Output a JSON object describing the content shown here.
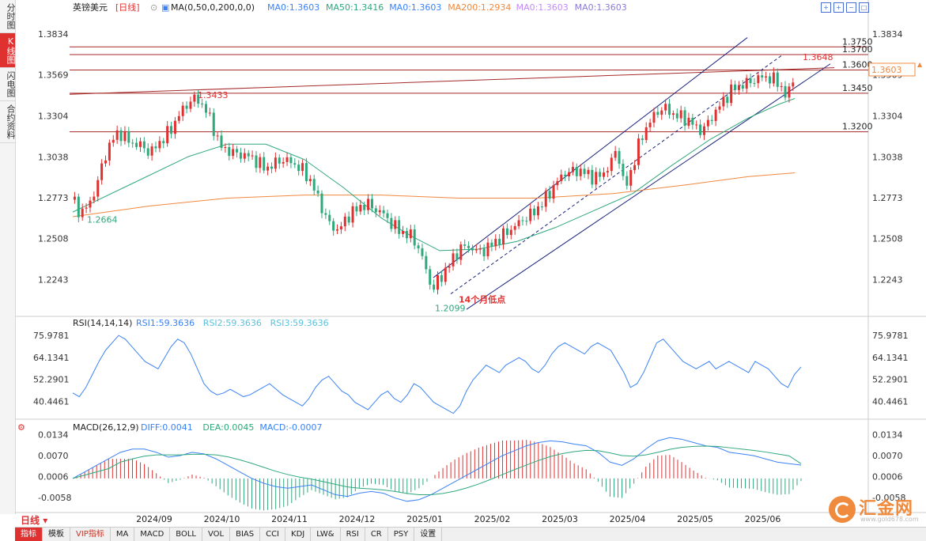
{
  "side_tabs": [
    {
      "label": "分时图",
      "active": false
    },
    {
      "label": "K线图",
      "active": true
    },
    {
      "label": "闪电图",
      "active": false
    },
    {
      "label": "合约资料",
      "active": false
    }
  ],
  "header": {
    "symbol": "英镑美元",
    "period_tag": "[日线]",
    "ma_label": "MA(0,50,0,200,0,0)",
    "ma_values": [
      {
        "text": "MA0:1.3603",
        "color": "#3b82f6"
      },
      {
        "text": "MA50:1.3416",
        "color": "#2fa87c"
      },
      {
        "text": "MA0:1.3603",
        "color": "#3b82f6"
      },
      {
        "text": "MA200:1.2934",
        "color": "#f0883e"
      },
      {
        "text": "MA0:1.3603",
        "color": "#c58af9"
      },
      {
        "text": "MA0:1.3603",
        "color": "#8b7bd8"
      }
    ]
  },
  "rsi_header": {
    "label": "RSI(14,14,14)",
    "values": [
      {
        "text": "RSI1:59.3636",
        "color": "#3b82f6"
      },
      {
        "text": "RSI2:59.3636",
        "color": "#5bc0de"
      },
      {
        "text": "RSI3:59.3636",
        "color": "#5bc0de"
      }
    ]
  },
  "macd_header": {
    "label": "MACD(26,12,9)",
    "values": [
      {
        "text": "DIFF:0.0041",
        "color": "#3b82f6"
      },
      {
        "text": "DEA:0.0045",
        "color": "#2fa87c"
      },
      {
        "text": "MACD:-0.0007",
        "color": "#3b82f6"
      }
    ]
  },
  "current_price": "1.3603",
  "period_button": "日线",
  "toolbar": [
    "指标",
    "模板",
    "VIP指标",
    "MA",
    "MACD",
    "BOLL",
    "VOL",
    "BIAS",
    "CCI",
    "KDJ",
    "LW&",
    "RSI",
    "CR",
    "PSY",
    "设置"
  ],
  "logo": {
    "text": "汇金网",
    "sub": "www.gold678.com"
  },
  "colors": {
    "up": "#e03131",
    "down": "#2fa87c",
    "ma50": "#2fa87c",
    "ma200": "#f0883e",
    "channel": "#1a237e",
    "hline": "#a52a2a"
  },
  "chart_data": [
    {
      "type": "candlestick",
      "y_ticks": [
        "1.3834",
        "1.3569",
        "1.3304",
        "1.3038",
        "1.2773",
        "1.2508",
        "1.2243"
      ],
      "ylim": [
        1.203,
        1.39
      ],
      "x_ticks": [
        "2024/09",
        "2024/10",
        "2024/11",
        "2024/12",
        "2025/01",
        "2025/02",
        "2025/03",
        "2025/04",
        "2025/05",
        "2025/06"
      ],
      "close_path": [
        [
          0,
          1.276
        ],
        [
          4,
          1.267
        ],
        [
          8,
          1.272
        ],
        [
          12,
          1.283
        ],
        [
          16,
          1.302
        ],
        [
          20,
          1.314
        ],
        [
          24,
          1.32
        ],
        [
          28,
          1.315
        ],
        [
          32,
          1.312
        ],
        [
          36,
          1.311
        ],
        [
          40,
          1.306
        ],
        [
          44,
          1.312
        ],
        [
          48,
          1.317
        ],
        [
          52,
          1.324
        ],
        [
          56,
          1.333
        ],
        [
          60,
          1.339
        ],
        [
          64,
          1.342
        ],
        [
          68,
          1.336
        ],
        [
          72,
          1.326
        ],
        [
          76,
          1.311
        ],
        [
          80,
          1.308
        ],
        [
          84,
          1.306
        ],
        [
          88,
          1.305
        ],
        [
          92,
          1.304
        ],
        [
          96,
          1.3
        ],
        [
          100,
          1.296
        ],
        [
          104,
          1.299
        ],
        [
          108,
          1.302
        ],
        [
          112,
          1.301
        ],
        [
          116,
          1.298
        ],
        [
          120,
          1.294
        ],
        [
          124,
          1.286
        ],
        [
          128,
          1.274
        ],
        [
          132,
          1.262
        ],
        [
          136,
          1.256
        ],
        [
          140,
          1.26
        ],
        [
          144,
          1.268
        ],
        [
          148,
          1.27
        ],
        [
          152,
          1.274
        ],
        [
          156,
          1.27
        ],
        [
          160,
          1.268
        ],
        [
          164,
          1.262
        ],
        [
          168,
          1.257
        ],
        [
          172,
          1.254
        ],
        [
          176,
          1.252
        ],
        [
          180,
          1.242
        ],
        [
          184,
          1.227
        ],
        [
          186,
          1.217
        ],
        [
          190,
          1.225
        ],
        [
          194,
          1.232
        ],
        [
          198,
          1.24
        ],
        [
          202,
          1.246
        ],
        [
          206,
          1.245
        ],
        [
          210,
          1.242
        ],
        [
          214,
          1.244
        ],
        [
          218,
          1.248
        ],
        [
          222,
          1.252
        ],
        [
          226,
          1.256
        ],
        [
          230,
          1.26
        ],
        [
          234,
          1.264
        ],
        [
          238,
          1.267
        ],
        [
          242,
          1.272
        ],
        [
          246,
          1.279
        ],
        [
          250,
          1.286
        ],
        [
          254,
          1.293
        ],
        [
          258,
          1.294
        ],
        [
          262,
          1.295
        ],
        [
          266,
          1.293
        ],
        [
          270,
          1.29
        ],
        [
          274,
          1.292
        ],
        [
          278,
          1.298
        ],
        [
          282,
          1.31
        ],
        [
          284,
          1.295
        ],
        [
          286,
          1.282
        ],
        [
          290,
          1.298
        ],
        [
          294,
          1.315
        ],
        [
          298,
          1.325
        ],
        [
          302,
          1.332
        ],
        [
          306,
          1.336
        ],
        [
          310,
          1.332
        ],
        [
          314,
          1.33
        ],
        [
          318,
          1.328
        ],
        [
          322,
          1.324
        ],
        [
          326,
          1.32
        ],
        [
          330,
          1.328
        ],
        [
          334,
          1.335
        ],
        [
          338,
          1.342
        ],
        [
          342,
          1.348
        ],
        [
          346,
          1.35
        ],
        [
          350,
          1.352
        ],
        [
          354,
          1.354
        ],
        [
          358,
          1.356
        ],
        [
          362,
          1.354
        ],
        [
          366,
          1.352
        ],
        [
          368,
          1.345
        ],
        [
          370,
          1.342
        ],
        [
          372,
          1.35
        ],
        [
          374,
          1.3603
        ]
      ],
      "ma50_path": [
        [
          0,
          1.268
        ],
        [
          30,
          1.286
        ],
        [
          60,
          1.304
        ],
        [
          80,
          1.312
        ],
        [
          100,
          1.312
        ],
        [
          120,
          1.302
        ],
        [
          140,
          1.284
        ],
        [
          160,
          1.264
        ],
        [
          176,
          1.252
        ],
        [
          190,
          1.243
        ],
        [
          210,
          1.244
        ],
        [
          230,
          1.249
        ],
        [
          250,
          1.258
        ],
        [
          270,
          1.269
        ],
        [
          290,
          1.28
        ],
        [
          310,
          1.298
        ],
        [
          330,
          1.315
        ],
        [
          350,
          1.329
        ],
        [
          366,
          1.338
        ],
        [
          374,
          1.3416
        ]
      ],
      "ma200_path": [
        [
          0,
          1.265
        ],
        [
          40,
          1.272
        ],
        [
          80,
          1.277
        ],
        [
          120,
          1.279
        ],
        [
          160,
          1.279
        ],
        [
          200,
          1.277
        ],
        [
          240,
          1.277
        ],
        [
          280,
          1.28
        ],
        [
          320,
          1.286
        ],
        [
          350,
          1.291
        ],
        [
          374,
          1.2934
        ]
      ],
      "h_levels": [
        1.375,
        1.37,
        1.36,
        1.345,
        1.32
      ],
      "labels": [
        {
          "text": "1.3750",
          "v": 1.375,
          "where": "right"
        },
        {
          "text": "1.3700",
          "v": 1.37,
          "where": "right"
        },
        {
          "text": "1.3600",
          "v": 1.36,
          "where": "right"
        },
        {
          "text": "1.3450",
          "v": 1.345,
          "where": "right"
        },
        {
          "text": "1.3200",
          "v": 1.32,
          "where": "right"
        },
        {
          "text": "1.3648",
          "v": 1.3648,
          "where": "peak"
        },
        {
          "text": "1.3433",
          "v": 1.3433,
          "where": "sep-high"
        },
        {
          "text": "1.2664",
          "v": 1.2664,
          "where": "aug-low"
        },
        {
          "text": "1.2099",
          "v": 1.2099,
          "where": "jan-low"
        },
        {
          "text": "14个月低点",
          "v": 1.211,
          "where": "jan-note"
        }
      ]
    },
    {
      "type": "line",
      "name": "RSI",
      "y_ticks": [
        "75.9781",
        "64.1341",
        "52.2901",
        "40.4461"
      ],
      "ylim": [
        33,
        82
      ],
      "values": [
        45,
        43,
        48,
        55,
        62,
        68,
        72,
        76,
        74,
        70,
        66,
        62,
        60,
        58,
        64,
        70,
        74,
        72,
        66,
        58,
        50,
        46,
        44,
        45,
        47,
        45,
        43,
        44,
        46,
        48,
        50,
        47,
        44,
        42,
        40,
        38,
        42,
        48,
        52,
        54,
        50,
        46,
        44,
        40,
        38,
        36,
        40,
        44,
        46,
        42,
        40,
        44,
        50,
        48,
        44,
        40,
        38,
        36,
        34,
        38,
        46,
        52,
        56,
        60,
        58,
        56,
        60,
        62,
        64,
        62,
        58,
        56,
        60,
        66,
        70,
        72,
        70,
        68,
        66,
        70,
        72,
        70,
        68,
        62,
        56,
        48,
        50,
        56,
        64,
        72,
        74,
        70,
        66,
        62,
        60,
        58,
        60,
        62,
        58,
        60,
        62,
        60,
        58,
        56,
        62,
        60,
        58,
        54,
        50,
        48,
        55,
        59
      ]
    },
    {
      "type": "bar+line",
      "name": "MACD",
      "y_ticks": [
        "0.0134",
        "0.0070",
        "0.0006",
        "-0.0058"
      ],
      "ylim": [
        -0.0085,
        0.0145
      ],
      "diff": [
        0.0,
        0.002,
        0.004,
        0.006,
        0.008,
        0.009,
        0.009,
        0.008,
        0.0065,
        0.007,
        0.008,
        0.0075,
        0.006,
        0.004,
        0.002,
        0.0,
        -0.0015,
        -0.0025,
        -0.003,
        -0.0025,
        -0.002,
        -0.0035,
        -0.005,
        -0.0055,
        -0.0045,
        -0.004,
        -0.0045,
        -0.006,
        -0.007,
        -0.0065,
        -0.005,
        -0.003,
        -0.001,
        0.001,
        0.003,
        0.005,
        0.007,
        0.0085,
        0.01,
        0.011,
        0.0115,
        0.0112,
        0.0105,
        0.01,
        0.008,
        0.005,
        0.004,
        0.006,
        0.009,
        0.0115,
        0.0125,
        0.012,
        0.011,
        0.01,
        0.0095,
        0.008,
        0.0075,
        0.007,
        0.006,
        0.005,
        0.0045,
        0.0041
      ],
      "dea": [
        0.0,
        0.001,
        0.002,
        0.003,
        0.005,
        0.006,
        0.0068,
        0.0072,
        0.0072,
        0.0072,
        0.0074,
        0.0074,
        0.0072,
        0.0066,
        0.0057,
        0.0046,
        0.0034,
        0.0022,
        0.0012,
        0.0004,
        -0.0002,
        -0.001,
        -0.0018,
        -0.0026,
        -0.003,
        -0.0032,
        -0.0035,
        -0.004,
        -0.0046,
        -0.005,
        -0.005,
        -0.0046,
        -0.0039,
        -0.0029,
        -0.0017,
        -0.0003,
        0.0012,
        0.0027,
        0.0041,
        0.0055,
        0.0067,
        0.0076,
        0.0082,
        0.0086,
        0.0085,
        0.0078,
        0.007,
        0.0068,
        0.0072,
        0.008,
        0.0089,
        0.0095,
        0.0098,
        0.0099,
        0.0098,
        0.0094,
        0.009,
        0.0086,
        0.0081,
        0.0075,
        0.0069,
        0.0045
      ]
    }
  ]
}
